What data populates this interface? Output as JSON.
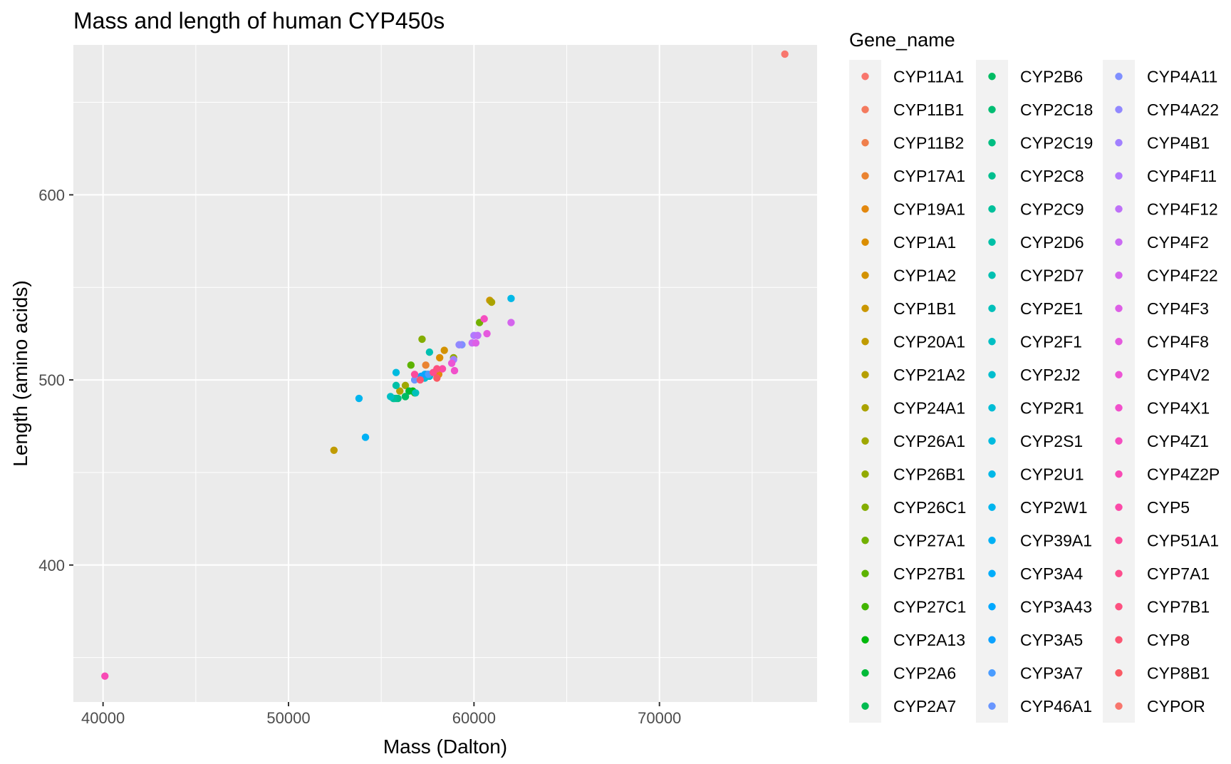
{
  "chart_data": {
    "type": "scatter",
    "title": "Mass and length of human CYP450s",
    "xlabel": "Mass (Dalton)",
    "ylabel": "Length (amino acids)",
    "xlim": [
      38400,
      78500
    ],
    "ylim": [
      326,
      681
    ],
    "x_major_ticks": [
      40000,
      50000,
      60000,
      70000
    ],
    "x_minor_ticks": [
      45000,
      55000,
      65000,
      75000
    ],
    "y_major_ticks": [
      400,
      500,
      600
    ],
    "y_minor_ticks": [
      350,
      450,
      550,
      650
    ],
    "grid": true,
    "legend_title": "Gene_name",
    "legend_position": "right",
    "panel_color": "#ebebeb",
    "grid_color": "#ffffff",
    "series": [
      {
        "name": "CYP11A1",
        "color": "#F8766D",
        "points": [
          [
            76760,
            676
          ]
        ]
      },
      {
        "name": "CYP11B1",
        "color": "#F47A5E",
        "points": [
          [
            57650,
            503
          ]
        ]
      },
      {
        "name": "CYP11B2",
        "color": "#EF7F4C",
        "points": [
          [
            57400,
            503
          ]
        ]
      },
      {
        "name": "CYP17A1",
        "color": "#EA8331",
        "points": [
          [
            57400,
            508
          ]
        ]
      },
      {
        "name": "CYP19A1",
        "color": "#E3880E",
        "points": [
          [
            58100,
            503
          ]
        ]
      },
      {
        "name": "CYP1A1",
        "color": "#DB8E00",
        "points": [
          [
            58150,
            512
          ]
        ]
      },
      {
        "name": "CYP1A2",
        "color": "#D39200",
        "points": [
          [
            58400,
            516
          ]
        ]
      },
      {
        "name": "CYP1B1",
        "color": "#CA9700",
        "points": [
          [
            60850,
            543
          ]
        ]
      },
      {
        "name": "CYP20A1",
        "color": "#C09B00",
        "points": [
          [
            52450,
            462
          ]
        ]
      },
      {
        "name": "CYP21A2",
        "color": "#B69F00",
        "points": [
          [
            56000,
            494
          ]
        ]
      },
      {
        "name": "CYP24A1",
        "color": "#ABA300",
        "points": [
          [
            60950,
            542
          ]
        ]
      },
      {
        "name": "CYP26A1",
        "color": "#9FA700",
        "points": [
          [
            56300,
            497
          ]
        ]
      },
      {
        "name": "CYP26B1",
        "color": "#92AA00",
        "points": [
          [
            58900,
            512
          ]
        ]
      },
      {
        "name": "CYP26C1",
        "color": "#84AD00",
        "points": [
          [
            57200,
            522
          ]
        ]
      },
      {
        "name": "CYP27A1",
        "color": "#72B000",
        "points": [
          [
            60300,
            531
          ]
        ]
      },
      {
        "name": "CYP27B1",
        "color": "#5DB300",
        "points": [
          [
            56600,
            508
          ]
        ]
      },
      {
        "name": "CYP27C1",
        "color": "#41B500",
        "points": [
          [
            56800,
            493
          ]
        ]
      },
      {
        "name": "CYP2A13",
        "color": "#00B80B",
        "points": [
          [
            56700,
            494
          ]
        ]
      },
      {
        "name": "CYP2A6",
        "color": "#00BA38",
        "points": [
          [
            56500,
            494
          ]
        ]
      },
      {
        "name": "CYP2A7",
        "color": "#00BB50",
        "points": [
          [
            56300,
            491
          ]
        ]
      },
      {
        "name": "CYP2B6",
        "color": "#00BC63",
        "points": [
          [
            56300,
            491
          ]
        ]
      },
      {
        "name": "CYP2C18",
        "color": "#00BD73",
        "points": [
          [
            55700,
            490
          ]
        ]
      },
      {
        "name": "CYP2C19",
        "color": "#00BE82",
        "points": [
          [
            55900,
            490
          ]
        ]
      },
      {
        "name": "CYP2C8",
        "color": "#00BF8F",
        "points": [
          [
            55800,
            490
          ]
        ]
      },
      {
        "name": "CYP2C9",
        "color": "#00C09B",
        "points": [
          [
            55650,
            490
          ]
        ]
      },
      {
        "name": "CYP2D6",
        "color": "#00C0A7",
        "points": [
          [
            55800,
            497
          ]
        ]
      },
      {
        "name": "CYP2D7",
        "color": "#00C0B1",
        "points": [
          [
            57600,
            515
          ]
        ]
      },
      {
        "name": "CYP2E1",
        "color": "#00C0BB",
        "points": [
          [
            56850,
            493
          ]
        ]
      },
      {
        "name": "CYP2F1",
        "color": "#00BFC4",
        "points": [
          [
            55500,
            491
          ]
        ]
      },
      {
        "name": "CYP2J2",
        "color": "#00BECE",
        "points": [
          [
            57600,
            502
          ]
        ]
      },
      {
        "name": "CYP2R1",
        "color": "#00BDD6",
        "points": [
          [
            57350,
            501
          ]
        ]
      },
      {
        "name": "CYP2S1",
        "color": "#00BBDF",
        "points": [
          [
            55800,
            504
          ]
        ]
      },
      {
        "name": "CYP2U1",
        "color": "#00B8E7",
        "points": [
          [
            62000,
            544
          ]
        ]
      },
      {
        "name": "CYP2W1",
        "color": "#00B5EE",
        "points": [
          [
            53800,
            490
          ]
        ]
      },
      {
        "name": "CYP39A1",
        "color": "#00B1F5",
        "points": [
          [
            54150,
            469
          ]
        ]
      },
      {
        "name": "CYP3A4",
        "color": "#00ADFA",
        "points": [
          [
            57350,
            503
          ]
        ]
      },
      {
        "name": "CYP3A43",
        "color": "#00A8FF",
        "points": [
          [
            57500,
            503
          ]
        ]
      },
      {
        "name": "CYP3A5",
        "color": "#0CA2FF",
        "points": [
          [
            57150,
            502
          ]
        ]
      },
      {
        "name": "CYP3A7",
        "color": "#4A9CFF",
        "points": [
          [
            57550,
            503
          ]
        ]
      },
      {
        "name": "CYP46A1",
        "color": "#6996FF",
        "points": [
          [
            56800,
            500
          ]
        ]
      },
      {
        "name": "CYP4A11",
        "color": "#7F8FFF",
        "points": [
          [
            59350,
            519
          ]
        ]
      },
      {
        "name": "CYP4A22",
        "color": "#9188FF",
        "points": [
          [
            59200,
            519
          ]
        ]
      },
      {
        "name": "CYP4B1",
        "color": "#A180FF",
        "points": [
          [
            58900,
            511
          ]
        ]
      },
      {
        "name": "CYP4F11",
        "color": "#B079FF",
        "points": [
          [
            60000,
            524
          ]
        ]
      },
      {
        "name": "CYP4F12",
        "color": "#BE71F8",
        "points": [
          [
            60200,
            524
          ]
        ]
      },
      {
        "name": "CYP4F2",
        "color": "#CA6AF3",
        "points": [
          [
            59900,
            520
          ]
        ]
      },
      {
        "name": "CYP4F22",
        "color": "#D464ED",
        "points": [
          [
            62000,
            531
          ]
        ]
      },
      {
        "name": "CYP4F3",
        "color": "#DD5FE6",
        "points": [
          [
            60100,
            520
          ]
        ]
      },
      {
        "name": "CYP4F8",
        "color": "#E55ADE",
        "points": [
          [
            60700,
            525
          ]
        ]
      },
      {
        "name": "CYP4V2",
        "color": "#EC55D5",
        "points": [
          [
            58800,
            509
          ]
        ]
      },
      {
        "name": "CYP4X1",
        "color": "#F150CB",
        "points": [
          [
            58950,
            505
          ]
        ]
      },
      {
        "name": "CYP4Z1",
        "color": "#F54DC0",
        "points": [
          [
            60550,
            533
          ]
        ]
      },
      {
        "name": "CYP4Z2P",
        "color": "#F84AB5",
        "points": [
          [
            40100,
            340
          ]
        ]
      },
      {
        "name": "CYP5",
        "color": "#FB4AA8",
        "points": [
          [
            58300,
            506
          ]
        ]
      },
      {
        "name": "CYP51A1",
        "color": "#FC4A9B",
        "points": [
          [
            56800,
            503
          ]
        ]
      },
      {
        "name": "CYP7A1",
        "color": "#FD4D8D",
        "points": [
          [
            57800,
            504
          ]
        ]
      },
      {
        "name": "CYP7B1",
        "color": "#FD5180",
        "points": [
          [
            58000,
            506
          ]
        ]
      },
      {
        "name": "CYP8",
        "color": "#FC5572",
        "points": [
          [
            57100,
            500
          ]
        ]
      },
      {
        "name": "CYP8B1",
        "color": "#FA5A64",
        "points": [
          [
            58000,
            501
          ]
        ]
      },
      {
        "name": "CYPOR",
        "color": "#F8766D",
        "points": []
      }
    ]
  }
}
